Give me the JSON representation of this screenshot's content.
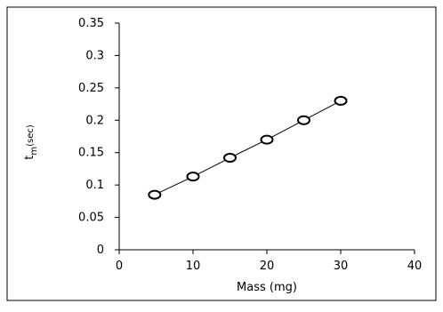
{
  "chart_data": {
    "type": "line",
    "xlabel": "Mass (mg)",
    "ylabel_main": "t",
    "ylabel_sub": "m",
    "ylabel_unit": "(sec)",
    "xlim": [
      0,
      40
    ],
    "ylim": [
      0,
      0.35
    ],
    "xticks": [
      "0",
      "10",
      "20",
      "30",
      "40"
    ],
    "yticks": [
      "0",
      "0.05",
      "0.1",
      "0.15",
      "0.2",
      "0.25",
      "0.3",
      "0.35"
    ],
    "grid": false,
    "legend": "none",
    "series": [
      {
        "x": [
          4.8,
          10,
          15,
          20,
          25,
          30
        ],
        "y": [
          0.085,
          0.113,
          0.142,
          0.17,
          0.2,
          0.23
        ],
        "marker": "open-circle",
        "color": "#000000"
      }
    ]
  }
}
